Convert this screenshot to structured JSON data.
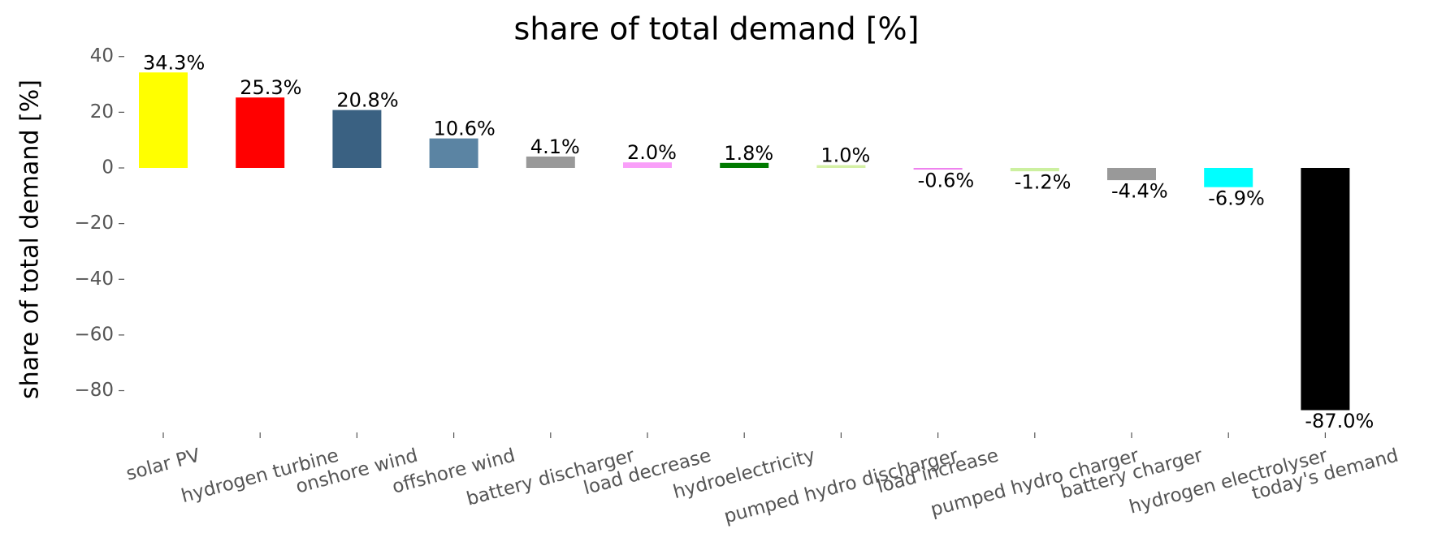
{
  "chart_data": {
    "type": "bar",
    "title": "share of total demand [%]",
    "y_label": "share of total demand [%]",
    "categories": [
      "solar PV",
      "hydrogen turbine",
      "onshore wind",
      "offshore wind",
      "battery discharger",
      "load decrease",
      "hydroelectricity",
      "pumped hydro discharger",
      "load increase",
      "pumped hydro charger",
      "battery charger",
      "hydrogen electrolyser",
      "today's demand"
    ],
    "values": [
      34.3,
      25.3,
      20.8,
      10.6,
      4.1,
      2.0,
      1.8,
      1.0,
      -0.6,
      -1.2,
      -4.4,
      -6.9,
      -87.0
    ],
    "value_labels": [
      "34.3%",
      "25.3%",
      "20.8%",
      "10.6%",
      "4.1%",
      "2.0%",
      "1.8%",
      "1.0%",
      "-0.6%",
      "-1.2%",
      "-4.4%",
      "-6.9%",
      "-87.0%"
    ],
    "colors": [
      "#ffff00",
      "#ff0000",
      "#3a6182",
      "#5b84a3",
      "#999999",
      "#f99ff9",
      "#007a00",
      "#d4f0a4",
      "#ee82ee",
      "#ccf0a0",
      "#999999",
      "#00ffff",
      "#000000"
    ],
    "ylim": [
      -95,
      44
    ],
    "yticks": [
      40,
      20,
      0,
      {
        "value": -20,
        "label": "−20"
      },
      {
        "value": -40,
        "label": "−40"
      },
      {
        "value": -60,
        "label": "−60"
      },
      {
        "value": -80,
        "label": "−80"
      }
    ],
    "grid": false
  }
}
